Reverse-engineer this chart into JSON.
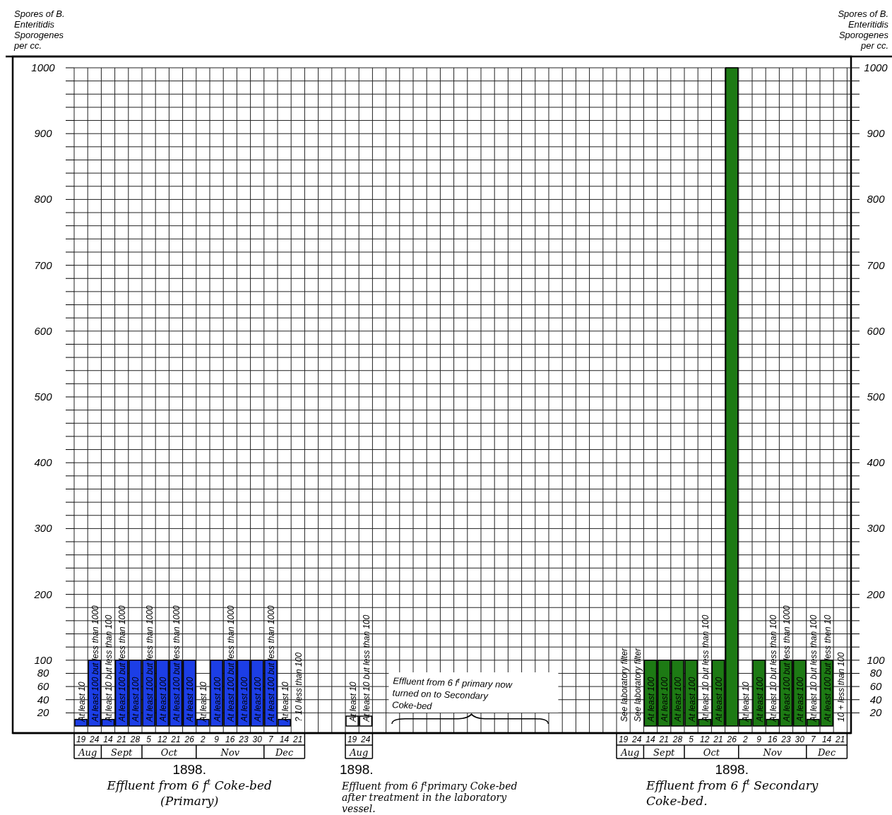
{
  "chart_data": [
    {
      "type": "bar",
      "title": "Effluent from 6 f$^{t}$ Coke-bed (Primary)",
      "xlabel": "1898.",
      "ylabel": "Spores of B. Enteritidis Sporogenes per cc.",
      "categories": [
        "19",
        "24",
        "14",
        "21",
        "28",
        "5",
        "12",
        "21",
        "26",
        "2",
        "9",
        "16",
        "23",
        "30",
        "7",
        "14",
        "21"
      ],
      "annotations": [
        "Aug",
        "Sept",
        "Oct",
        "Nov",
        "Dec"
      ],
      "series": [
        {
          "color": "#1c3ee6",
          "values": [
            10,
            100,
            10,
            100,
            100,
            100,
            100,
            100,
            100,
            10,
            100,
            100,
            100,
            100,
            100,
            10,
            null
          ],
          "value_labels": [
            "At least 10",
            "At least 100 but less than 1000",
            "At least 10 but less than 100",
            "At least 100 but less than 1000",
            "At least 100",
            "At least 100 but less than 1000",
            "At least 100",
            "At least 100 but less than 1000",
            "At least 100",
            "At least 10",
            "At least 100",
            "At least 100 but less than 1000",
            "At least 100",
            "At least 100",
            "At least 100 but less than 1000",
            "At least 10",
            "? 10 less than 100"
          ]
        }
      ],
      "ylim": [
        0,
        1000
      ],
      "yticks": [
        20,
        40,
        60,
        80,
        100,
        {
          "value": 120,
          "label": null
        },
        {
          "value": 140,
          "label": null
        },
        {
          "value": 160,
          "label": null
        },
        {
          "value": 180,
          "label": null
        },
        200,
        {
          "value": 220,
          "label": null
        },
        {
          "value": 240,
          "label": null
        },
        {
          "value": 260,
          "label": null
        },
        {
          "value": 280,
          "label": null
        },
        300,
        {
          "value": 320,
          "label": null
        },
        {
          "value": 340,
          "label": null
        },
        {
          "value": 360,
          "label": null
        },
        {
          "value": 380,
          "label": null
        },
        400,
        {
          "value": 420,
          "label": null
        },
        {
          "value": 440,
          "label": null
        },
        {
          "value": 460,
          "label": null
        },
        {
          "value": 480,
          "label": null
        },
        500,
        {
          "value": 520,
          "label": null
        },
        {
          "value": 540,
          "label": null
        },
        {
          "value": 560,
          "label": null
        },
        {
          "value": 580,
          "label": null
        },
        600,
        {
          "value": 620,
          "label": null
        },
        {
          "value": 640,
          "label": null
        },
        {
          "value": 660,
          "label": null
        },
        {
          "value": 680,
          "label": null
        },
        700,
        {
          "value": 720,
          "label": null
        },
        {
          "value": 740,
          "label": null
        },
        {
          "value": 760,
          "label": null
        },
        {
          "value": 780,
          "label": null
        },
        800,
        {
          "value": 820,
          "label": null
        },
        {
          "value": 840,
          "label": null
        },
        {
          "value": 860,
          "label": null
        },
        {
          "value": 880,
          "label": null
        },
        900,
        {
          "value": 920,
          "label": null
        },
        {
          "value": 940,
          "label": null
        },
        {
          "value": 960,
          "label": null
        },
        {
          "value": 980,
          "label": null
        },
        1000
      ],
      "grid": true
    },
    {
      "type": "bar",
      "title": "Effluent from 6 f$^{t}$primary Coke-bed after treatment in the laboratory vessel.",
      "xlabel": "1898.",
      "categories": [
        "19",
        "24"
      ],
      "annotations": [
        "Aug",
        "Effluent from 6 f$^{t}$ primary now turned on to Secondary Coke-bed"
      ],
      "series": [
        {
          "color": "#ffffff",
          "values": [
            15,
            15
          ],
          "value_labels": [
            "At least 10",
            "At least 10 but less than 100"
          ]
        }
      ],
      "ylim": [
        0,
        1000
      ],
      "yticks": [
        20,
        40,
        60,
        80,
        100,
        {
          "value": 120,
          "label": null
        },
        {
          "value": 140,
          "label": null
        },
        {
          "value": 160,
          "label": null
        },
        {
          "value": 180,
          "label": null
        },
        200,
        {
          "value": 220,
          "label": null
        },
        {
          "value": 240,
          "label": null
        },
        {
          "value": 260,
          "label": null
        },
        {
          "value": 280,
          "label": null
        },
        300,
        {
          "value": 320,
          "label": null
        },
        {
          "value": 340,
          "label": null
        },
        {
          "value": 360,
          "label": null
        },
        {
          "value": 380,
          "label": null
        },
        400,
        {
          "value": 420,
          "label": null
        },
        {
          "value": 440,
          "label": null
        },
        {
          "value": 460,
          "label": null
        },
        {
          "value": 480,
          "label": null
        },
        500,
        {
          "value": 520,
          "label": null
        },
        {
          "value": 540,
          "label": null
        },
        {
          "value": 560,
          "label": null
        },
        {
          "value": 580,
          "label": null
        },
        600,
        {
          "value": 620,
          "label": null
        },
        {
          "value": 640,
          "label": null
        },
        {
          "value": 660,
          "label": null
        },
        {
          "value": 680,
          "label": null
        },
        700,
        {
          "value": 720,
          "label": null
        },
        {
          "value": 740,
          "label": null
        },
        {
          "value": 760,
          "label": null
        },
        {
          "value": 780,
          "label": null
        },
        800,
        {
          "value": 820,
          "label": null
        },
        {
          "value": 840,
          "label": null
        },
        {
          "value": 860,
          "label": null
        },
        {
          "value": 880,
          "label": null
        },
        900,
        {
          "value": 920,
          "label": null
        },
        {
          "value": 940,
          "label": null
        },
        {
          "value": 960,
          "label": null
        },
        {
          "value": 980,
          "label": null
        },
        1000
      ],
      "grid": true,
      "tick_labels": "x"
    },
    {
      "type": "bar",
      "title": "Effluent from 6 f$^{t}$ Secondary Coke-bed.",
      "xlabel": "1898.",
      "y2label": "Spores of B. Enteritidis Sporogenes per cc.",
      "categories": [
        "19",
        "24",
        "14",
        "21",
        "28",
        "5",
        "12",
        "21",
        "26",
        "2",
        "9",
        "16",
        "23",
        "30",
        "7",
        "14",
        "21"
      ],
      "annotations": [
        "Aug",
        "Sept",
        "Oct",
        "Nov",
        "Dec"
      ],
      "series": [
        {
          "color": "#1d7a14",
          "axis": "y2",
          "values": [
            null,
            null,
            100,
            100,
            100,
            100,
            10,
            100,
            1000,
            10,
            100,
            10,
            100,
            100,
            10,
            100,
            null
          ],
          "value_labels": [
            "See laboratory filter",
            "See laboratory filter",
            "At least 100",
            "At least 100",
            "At least 100",
            "At least 100",
            "At least 10 but less than 100",
            "At least 100",
            null,
            "At least 10",
            "At least 100",
            "At least 10 but less than 100",
            "At least 100 but less than 1000",
            "At least 100",
            "At least 10 but less than 100",
            "At least 100 but less then 10",
            "10 + less than 100"
          ]
        }
      ],
      "y2lim": [
        0,
        1000
      ],
      "y2ticks": [
        20,
        40,
        60,
        80,
        100,
        {
          "value": 120,
          "label": null
        },
        {
          "value": 140,
          "label": null
        },
        {
          "value": 160,
          "label": null
        },
        {
          "value": 180,
          "label": null
        },
        200,
        {
          "value": 220,
          "label": null
        },
        {
          "value": 240,
          "label": null
        },
        {
          "value": 260,
          "label": null
        },
        {
          "value": 280,
          "label": null
        },
        300,
        {
          "value": 320,
          "label": null
        },
        {
          "value": 340,
          "label": null
        },
        {
          "value": 360,
          "label": null
        },
        {
          "value": 380,
          "label": null
        },
        400,
        {
          "value": 420,
          "label": null
        },
        {
          "value": 440,
          "label": null
        },
        {
          "value": 460,
          "label": null
        },
        {
          "value": 480,
          "label": null
        },
        500,
        {
          "value": 520,
          "label": null
        },
        {
          "value": 540,
          "label": null
        },
        {
          "value": 560,
          "label": null
        },
        {
          "value": 580,
          "label": null
        },
        600,
        {
          "value": 620,
          "label": null
        },
        {
          "value": 640,
          "label": null
        },
        {
          "value": 660,
          "label": null
        },
        {
          "value": 680,
          "label": null
        },
        700,
        {
          "value": 720,
          "label": null
        },
        {
          "value": 740,
          "label": null
        },
        {
          "value": 760,
          "label": null
        },
        {
          "value": 780,
          "label": null
        },
        800,
        {
          "value": 820,
          "label": null
        },
        {
          "value": 840,
          "label": null
        },
        {
          "value": 860,
          "label": null
        },
        {
          "value": 880,
          "label": null
        },
        900,
        {
          "value": 920,
          "label": null
        },
        {
          "value": 940,
          "label": null
        },
        {
          "value": 960,
          "label": null
        },
        {
          "value": 980,
          "label": null
        },
        1000
      ],
      "grid": true
    }
  ]
}
